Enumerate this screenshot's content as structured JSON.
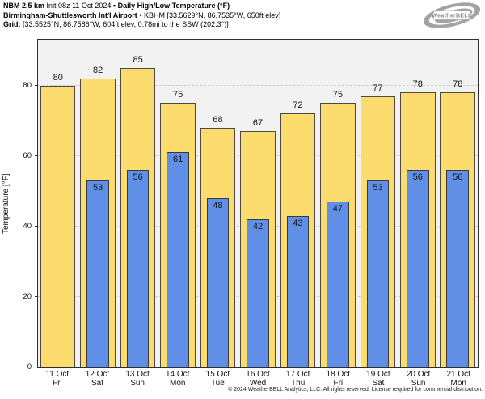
{
  "header": {
    "model": "NBM 2.5 km",
    "init": "Init 08z 11 Oct 2024",
    "sep": "•",
    "product": "Daily High/Low Temperature (°F)",
    "station": "Birmingham-Shuttlesworth Int'l Airport",
    "station_details": "KBHM [33.5629°N, 86.7535°W, 650ft elev]",
    "grid_label": "Grid:",
    "grid_details": "[33.5525°N, 86.7586°W, 604ft elev, 0.78mi to the SSW (202.3°)]"
  },
  "logo": {
    "brand": "WeatherBELL"
  },
  "chart_data": {
    "type": "bar",
    "title": "Daily High/Low Temperature (°F)",
    "categories": [
      {
        "date": "11 Oct",
        "day": "Fri"
      },
      {
        "date": "12 Oct",
        "day": "Sat"
      },
      {
        "date": "13 Oct",
        "day": "Sun"
      },
      {
        "date": "14 Oct",
        "day": "Mon"
      },
      {
        "date": "15 Oct",
        "day": "Tue"
      },
      {
        "date": "16 Oct",
        "day": "Wed"
      },
      {
        "date": "17 Oct",
        "day": "Thu"
      },
      {
        "date": "18 Oct",
        "day": "Fri"
      },
      {
        "date": "19 Oct",
        "day": "Sat"
      },
      {
        "date": "20 Oct",
        "day": "Sun"
      },
      {
        "date": "21 Oct",
        "day": "Mon"
      }
    ],
    "series": [
      {
        "name": "High",
        "color": "#fcdc6e",
        "values": [
          80,
          82,
          85,
          75,
          68,
          67,
          72,
          75,
          77,
          78,
          78
        ]
      },
      {
        "name": "Low",
        "color": "#6090e6",
        "values": [
          null,
          53,
          56,
          61,
          48,
          42,
          43,
          47,
          53,
          56,
          56
        ]
      }
    ],
    "ylabel": "Temperature [°F]",
    "yticks": [
      0,
      20,
      40,
      60,
      80
    ],
    "ylim": [
      0,
      93
    ],
    "grid": "dashed-horizontal",
    "plot_background": "#f2f2f2"
  },
  "footer": {
    "copyright": "© 2024 WeatherBELL Analytics, LLC. All rights reserved. License required for commercial distribution."
  }
}
